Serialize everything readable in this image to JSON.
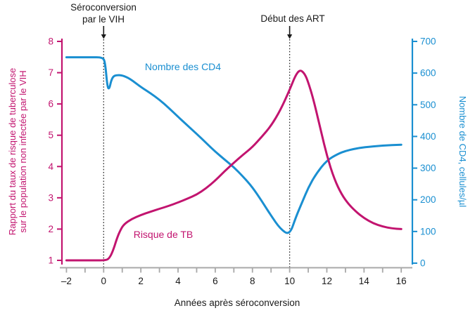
{
  "chart_data": {
    "type": "line",
    "title": "",
    "xlabel": "Années après séroconversion",
    "xlim": [
      -2,
      16
    ],
    "grid": false,
    "x_ticks": [
      -2,
      -1,
      0,
      1,
      2,
      3,
      4,
      5,
      6,
      7,
      8,
      9,
      10,
      11,
      12,
      13,
      14,
      15,
      16
    ],
    "x_labeled_ticks": [
      -2,
      0,
      2,
      4,
      6,
      8,
      10,
      12,
      14,
      16
    ],
    "x_tick_labels": [
      "–2",
      "0",
      "2",
      "4",
      "6",
      "8",
      "10",
      "12",
      "14",
      "16"
    ],
    "axis_gray": "#a8a8a8",
    "text_color": "#1a1a1a",
    "left_axis": {
      "label_line1": "Rapport du taux de risque de tuberculose",
      "label_line2": "sur le population non infectée par le VIH",
      "lim": [
        1,
        8
      ],
      "ticks": [
        1,
        2,
        3,
        4,
        5,
        6,
        7,
        8
      ],
      "color": "#c2146f"
    },
    "right_axis": {
      "label": "Nombre de CD4, cellules/µl",
      "lim": [
        0,
        700
      ],
      "ticks": [
        0,
        100,
        200,
        300,
        400,
        500,
        600,
        700
      ],
      "color": "#1a8fd1"
    },
    "event_lines": [
      {
        "x": 0,
        "label_line1": "Séroconversion",
        "label_line2": "par le VIH"
      },
      {
        "x": 10,
        "label_line1": "Début des ART",
        "label_line2": ""
      }
    ],
    "series": [
      {
        "name": "Nombre des CD4",
        "axis": "right",
        "color": "#1a8fd1",
        "points": [
          [
            -2,
            650
          ],
          [
            -0.7,
            650
          ],
          [
            -0.05,
            650
          ],
          [
            0.08,
            634
          ],
          [
            0.2,
            556
          ],
          [
            0.3,
            549
          ],
          [
            0.4,
            576
          ],
          [
            0.52,
            590
          ],
          [
            0.7,
            594
          ],
          [
            1,
            593
          ],
          [
            1.4,
            583
          ],
          [
            2,
            556
          ],
          [
            2.5,
            537
          ],
          [
            3,
            516
          ],
          [
            3.5,
            490
          ],
          [
            4,
            462
          ],
          [
            4.5,
            435
          ],
          [
            5,
            408
          ],
          [
            5.5,
            380
          ],
          [
            6,
            352
          ],
          [
            6.5,
            327
          ],
          [
            7,
            303
          ],
          [
            7.5,
            273
          ],
          [
            8,
            240
          ],
          [
            8.5,
            196
          ],
          [
            9,
            150
          ],
          [
            9.5,
            108
          ],
          [
            10,
            88
          ],
          [
            10.35,
            148
          ],
          [
            10.7,
            196
          ],
          [
            11,
            238
          ],
          [
            11.4,
            280
          ],
          [
            12,
            325
          ],
          [
            12.6,
            345
          ],
          [
            13,
            354
          ],
          [
            13.5,
            361
          ],
          [
            14,
            366
          ],
          [
            15,
            371
          ],
          [
            16,
            374
          ]
        ]
      },
      {
        "name": "Risque de TB",
        "axis": "left",
        "color": "#c2146f",
        "points": [
          [
            -2,
            1
          ],
          [
            -0.5,
            1
          ],
          [
            0.1,
            1
          ],
          [
            0.3,
            1.06
          ],
          [
            0.5,
            1.3
          ],
          [
            0.7,
            1.68
          ],
          [
            0.9,
            1.97
          ],
          [
            1.1,
            2.16
          ],
          [
            1.5,
            2.32
          ],
          [
            2,
            2.45
          ],
          [
            2.5,
            2.55
          ],
          [
            3,
            2.65
          ],
          [
            3.5,
            2.74
          ],
          [
            4,
            2.85
          ],
          [
            4.5,
            2.97
          ],
          [
            5,
            3.1
          ],
          [
            5.5,
            3.3
          ],
          [
            6,
            3.55
          ],
          [
            6.5,
            3.85
          ],
          [
            7,
            4.12
          ],
          [
            7.5,
            4.38
          ],
          [
            8,
            4.62
          ],
          [
            8.5,
            4.95
          ],
          [
            9,
            5.3
          ],
          [
            9.5,
            5.8
          ],
          [
            10,
            6.45
          ],
          [
            10.3,
            6.9
          ],
          [
            10.55,
            7.1
          ],
          [
            10.8,
            6.98
          ],
          [
            11,
            6.7
          ],
          [
            11.3,
            6.1
          ],
          [
            11.7,
            5.1
          ],
          [
            12,
            4.35
          ],
          [
            12.4,
            3.6
          ],
          [
            12.8,
            3.1
          ],
          [
            13.2,
            2.77
          ],
          [
            13.6,
            2.54
          ],
          [
            14,
            2.35
          ],
          [
            14.5,
            2.18
          ],
          [
            15,
            2.08
          ],
          [
            15.5,
            2.02
          ],
          [
            16,
            2
          ]
        ]
      }
    ]
  }
}
